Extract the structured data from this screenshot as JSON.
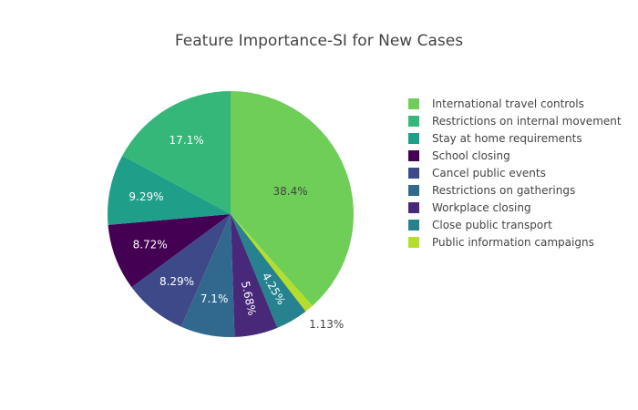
{
  "chart_data": {
    "type": "pie",
    "title": "Feature Importance-SI for New Cases",
    "legend_position": "right",
    "slices": [
      {
        "label": "International travel controls",
        "value": 38.4,
        "text": "38.4%",
        "color": "#6ece58"
      },
      {
        "label": "Public information campaigns",
        "value": 1.13,
        "text": "1.13%",
        "color": "#b5de2b"
      },
      {
        "label": "Close public transport",
        "value": 4.25,
        "text": "4.25%",
        "color": "#26828e"
      },
      {
        "label": "Workplace closing",
        "value": 5.68,
        "text": "5.68%",
        "color": "#482878"
      },
      {
        "label": "Restrictions on gatherings",
        "value": 7.1,
        "text": "7.1%",
        "color": "#31688e"
      },
      {
        "label": "Cancel public events",
        "value": 8.29,
        "text": "8.29%",
        "color": "#3e4989"
      },
      {
        "label": "School closing",
        "value": 8.72,
        "text": "8.72%",
        "color": "#440154"
      },
      {
        "label": "Stay at home requirements",
        "value": 9.29,
        "text": "9.29%",
        "color": "#1f9e89"
      },
      {
        "label": "Restrictions on internal movement",
        "value": 17.1,
        "text": "17.1%",
        "color": "#35b779"
      }
    ],
    "legend_order": [
      "International travel controls",
      "Restrictions on internal movement",
      "Stay at home requirements",
      "School closing",
      "Cancel public events",
      "Restrictions on gatherings",
      "Workplace closing",
      "Close public transport",
      "Public information campaigns"
    ]
  }
}
